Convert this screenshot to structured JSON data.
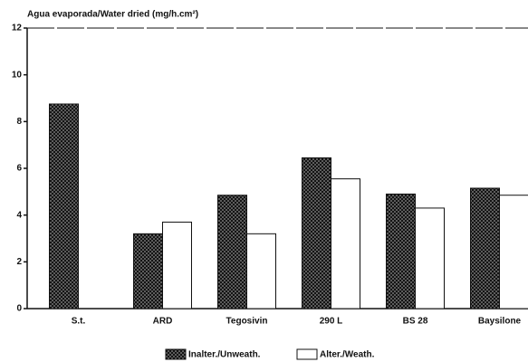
{
  "chart_data": {
    "type": "bar",
    "title": "Agua evaporada/Water dried (mg/h.cm²)",
    "categories": [
      "S.t.",
      "ARD",
      "Tegosivin",
      "290 L",
      "BS 28",
      "Baysilone"
    ],
    "series": [
      {
        "name": "Inalter./Unweath.",
        "color": "#2a2a2a",
        "values": [
          8.75,
          3.2,
          4.85,
          6.45,
          4.9,
          5.15
        ]
      },
      {
        "name": "Alter./Weath.",
        "color": "#ffffff",
        "values": [
          null,
          3.7,
          3.2,
          5.55,
          4.3,
          4.85
        ]
      }
    ],
    "ylim": [
      0,
      12
    ],
    "yticks": [
      0,
      2,
      4,
      6,
      8,
      10,
      12
    ],
    "legend": "bottom"
  }
}
